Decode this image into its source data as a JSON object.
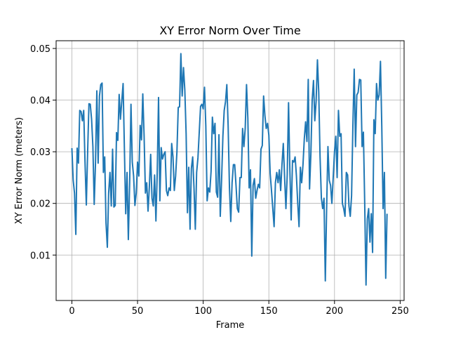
{
  "chart_data": {
    "type": "line",
    "title": "XY Error Norm Over Time",
    "xlabel": "Frame",
    "ylabel": "XY Error Norm (meters)",
    "xlim": [
      -12,
      253
    ],
    "ylim": [
      0.0012,
      0.0515
    ],
    "x_ticks": [
      0,
      50,
      100,
      150,
      200,
      250
    ],
    "x_tick_labels": [
      "0",
      "50",
      "100",
      "150",
      "200",
      "250"
    ],
    "y_ticks": [
      0.01,
      0.02,
      0.03,
      0.04,
      0.05
    ],
    "y_tick_labels": [
      "0.01",
      "0.02",
      "0.03",
      "0.04",
      "0.05"
    ],
    "grid": true,
    "line_color": "#1f77b4",
    "series": [
      {
        "values": [
          0.0307,
          0.0245,
          0.022,
          0.014,
          0.0307,
          0.0278,
          0.038,
          0.0378,
          0.036,
          0.038,
          0.028,
          0.0197,
          0.03,
          0.0393,
          0.0392,
          0.0363,
          0.031,
          0.0198,
          0.028,
          0.0418,
          0.0278,
          0.0408,
          0.043,
          0.0433,
          0.026,
          0.029,
          0.0162,
          0.0115,
          0.022,
          0.026,
          0.0195,
          0.0305,
          0.0193,
          0.0196,
          0.0337,
          0.0322,
          0.0411,
          0.0363,
          0.0398,
          0.0432,
          0.0305,
          0.018,
          0.026,
          0.013,
          0.024,
          0.0392,
          0.028,
          0.0253,
          0.0196,
          0.022,
          0.028,
          0.0253,
          0.0351,
          0.0323,
          0.0412,
          0.033,
          0.022,
          0.024,
          0.0185,
          0.0232,
          0.0295,
          0.021,
          0.0195,
          0.0255,
          0.0166,
          0.026,
          0.0405,
          0.0205,
          0.0308,
          0.0286,
          0.0295,
          0.03,
          0.0225,
          0.0215,
          0.023,
          0.0225,
          0.0316,
          0.029,
          0.0225,
          0.0253,
          0.03,
          0.0386,
          0.0387,
          0.049,
          0.0408,
          0.0463,
          0.042,
          0.0335,
          0.0182,
          0.027,
          0.015,
          0.0268,
          0.029,
          0.023,
          0.015,
          0.026,
          0.0288,
          0.0338,
          0.0388,
          0.0392,
          0.0383,
          0.0425,
          0.035,
          0.0205,
          0.023,
          0.0222,
          0.0262,
          0.0367,
          0.0335,
          0.0355,
          0.0222,
          0.0212,
          0.0333,
          0.0175,
          0.0245,
          0.033,
          0.038,
          0.0397,
          0.043,
          0.035,
          0.023,
          0.0165,
          0.024,
          0.0275,
          0.0275,
          0.0235,
          0.019,
          0.0183,
          0.025,
          0.025,
          0.0345,
          0.031,
          0.0345,
          0.043,
          0.0365,
          0.023,
          0.0265,
          0.0098,
          0.0235,
          0.0248,
          0.021,
          0.0225,
          0.0237,
          0.023,
          0.0305,
          0.0312,
          0.0408,
          0.037,
          0.0345,
          0.0355,
          0.0332,
          0.0258,
          0.0225,
          0.019,
          0.0155,
          0.024,
          0.026,
          0.024,
          0.0265,
          0.0225,
          0.0275,
          0.0316,
          0.025,
          0.019,
          0.0256,
          0.0395,
          0.0265,
          0.0168,
          0.0283,
          0.028,
          0.029,
          0.0253,
          0.02,
          0.0155,
          0.027,
          0.024,
          0.0275,
          0.0325,
          0.0358,
          0.032,
          0.044,
          0.0228,
          0.0295,
          0.04,
          0.0438,
          0.036,
          0.0398,
          0.0478,
          0.0415,
          0.029,
          0.021,
          0.019,
          0.021,
          0.005,
          0.019,
          0.031,
          0.0245,
          0.0235,
          0.02,
          0.025,
          0.03,
          0.033,
          0.025,
          0.038,
          0.033,
          0.0335,
          0.02,
          0.019,
          0.0175,
          0.026,
          0.0255,
          0.0195,
          0.0175,
          0.0215,
          0.035,
          0.046,
          0.031,
          0.041,
          0.0415,
          0.044,
          0.0439,
          0.031,
          0.0338,
          0.02,
          0.0042,
          0.017,
          0.019,
          0.0125,
          0.018,
          0.0105,
          0.0362,
          0.0335,
          0.0432,
          0.04,
          0.041,
          0.0475,
          0.035,
          0.019,
          0.026,
          0.0055,
          0.018
        ]
      }
    ]
  }
}
